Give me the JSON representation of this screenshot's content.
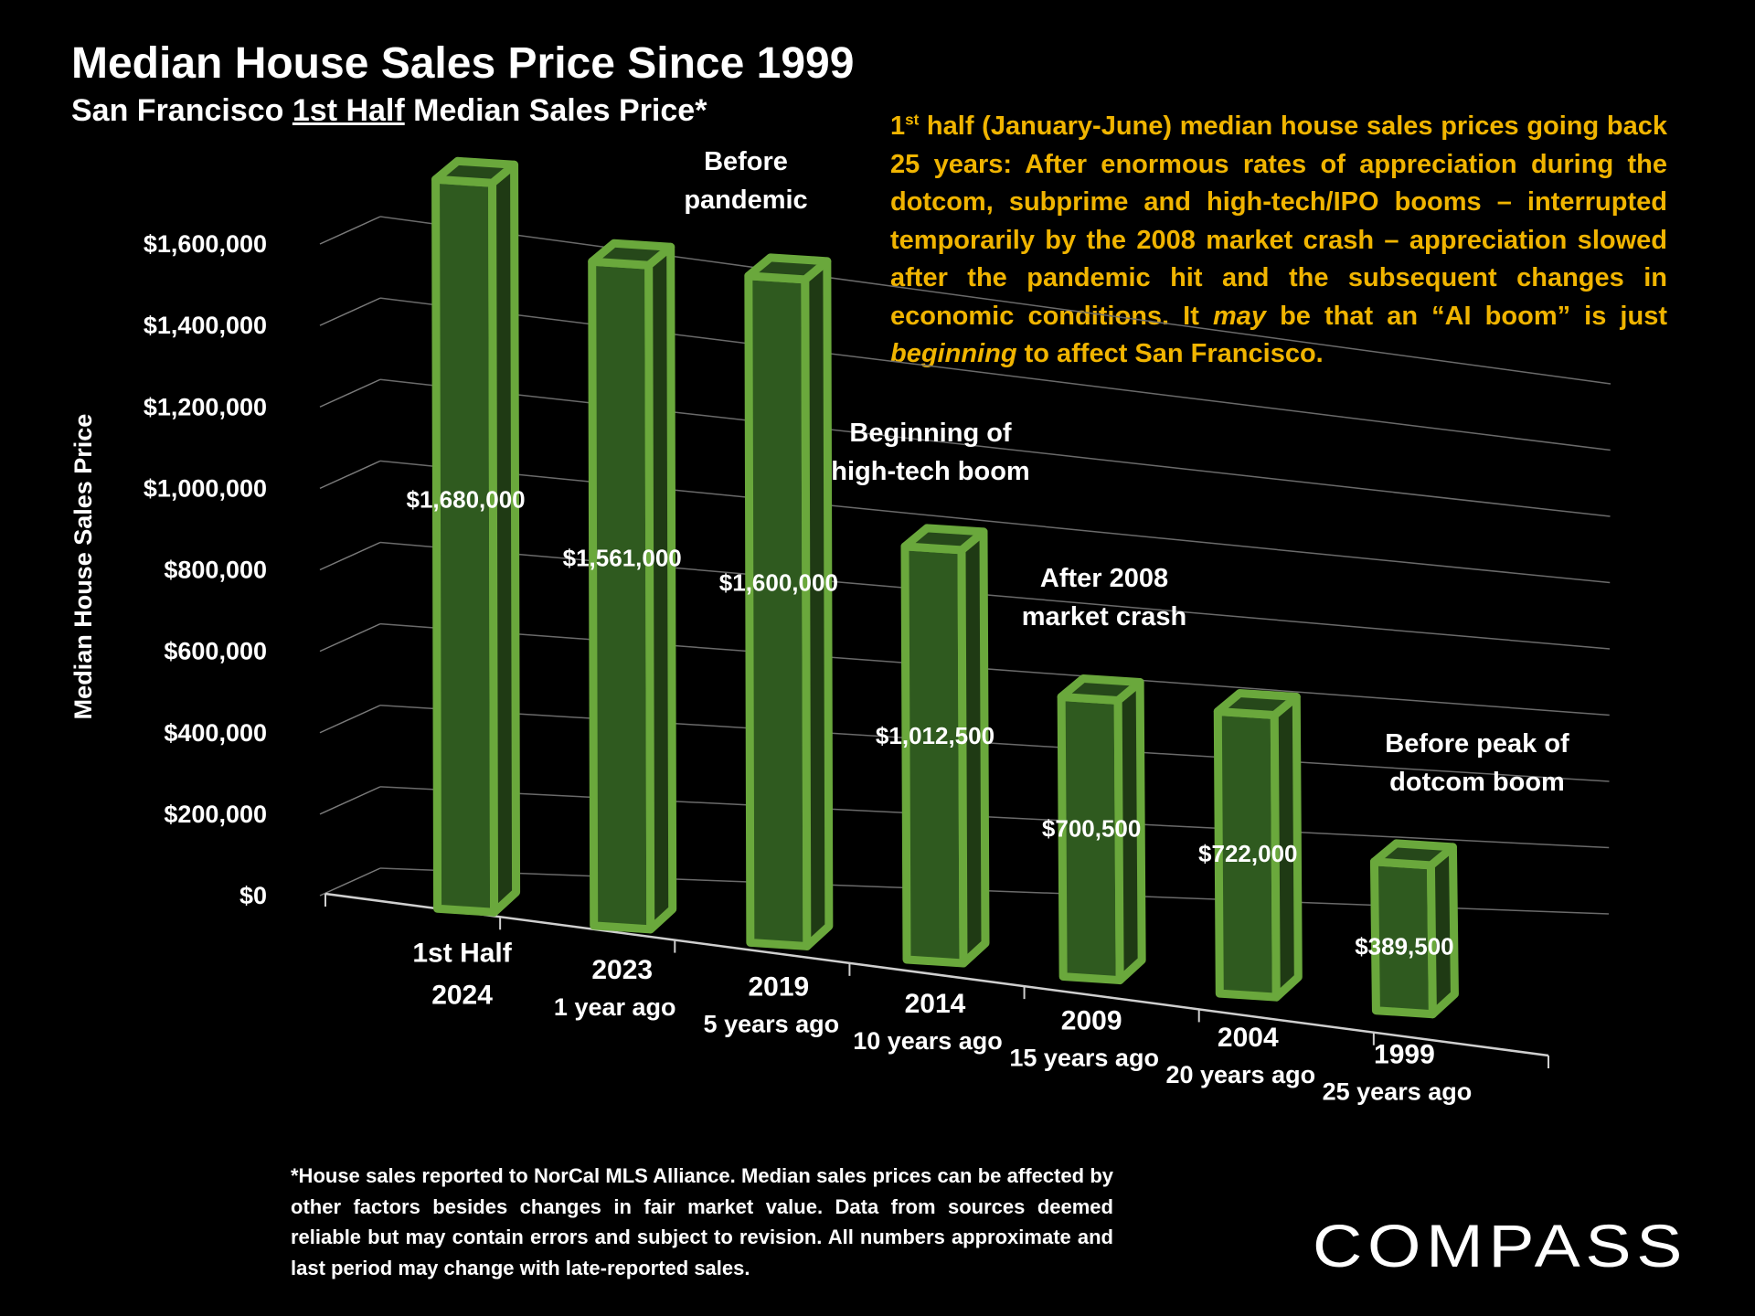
{
  "title": "Median House Sales Price Since 1999",
  "subtitle": {
    "prefix": "San Francisco ",
    "underlined": "1st Half",
    "suffix": " Median Sales Price*"
  },
  "description": {
    "sup_number": "1",
    "sup": "st",
    "part1": " half (January-June) median house sales prices going back 25 years:  After enormous rates of appreciation during the dotcom, subprime and high-tech/IPO booms – interrupted temporarily by the 2008 market crash – appreciation slowed after the pandemic hit and the subsequent changes in economic conditions. It ",
    "italic1": "may",
    "part2": " be that an “AI boom” is just ",
    "italic2": "beginning",
    "part3": " to affect San Francisco."
  },
  "footnote": "*House sales reported to NorCal MLS Alliance. Median sales prices can be affected by other factors besides changes in fair market value. Data from sources deemed reliable but may contain errors and subject to revision. All numbers  approximate and last period may change with late-reported sales.",
  "logo": "COMPASS",
  "colors": {
    "background": "#000000",
    "bar_front": "#2f5a1f",
    "bar_side": "#1f3a14",
    "bar_edge": "#6aa83c",
    "description_text": "#f0b400"
  },
  "chart_data": {
    "type": "bar",
    "title": "Median House Sales Price Since 1999",
    "ylabel": "Median House Sales Price",
    "xlabel": "",
    "ylim": [
      0,
      1600000
    ],
    "y_ticks": [
      0,
      200000,
      400000,
      600000,
      800000,
      1000000,
      1200000,
      1400000,
      1600000
    ],
    "y_tick_labels": [
      "$0",
      "$200,000",
      "$400,000",
      "$600,000",
      "$800,000",
      "$1,000,000",
      "$1,200,000",
      "$1,400,000",
      "$1,600,000"
    ],
    "grid": true,
    "categories": [
      {
        "line1": "1st Half",
        "line2": "2024"
      },
      {
        "line1": "2023",
        "line2": "1 year ago"
      },
      {
        "line1": "2019",
        "line2": "5 years ago"
      },
      {
        "line1": "2014",
        "line2": "10 years ago"
      },
      {
        "line1": "2009",
        "line2": "15 years ago"
      },
      {
        "line1": "2004",
        "line2": "20 years ago"
      },
      {
        "line1": "1999",
        "line2": "25 years ago"
      }
    ],
    "values": [
      1680000,
      1561000,
      1600000,
      1012500,
      700500,
      722000,
      389500
    ],
    "value_labels": [
      "$1,680,000",
      "$1,561,000",
      "$1,600,000",
      "$1,012,500",
      "$700,500",
      "$722,000",
      "$389,500"
    ],
    "annotations": [
      {
        "bar": 2,
        "lines": [
          "Before",
          "pandemic"
        ]
      },
      {
        "bar": 3,
        "lines": [
          "Beginning of",
          "high-tech boom"
        ]
      },
      {
        "bar": 4,
        "lines": [
          "After 2008",
          "market crash"
        ]
      },
      {
        "bar": 6,
        "lines": [
          "Before peak of",
          "dotcom boom"
        ]
      }
    ]
  }
}
